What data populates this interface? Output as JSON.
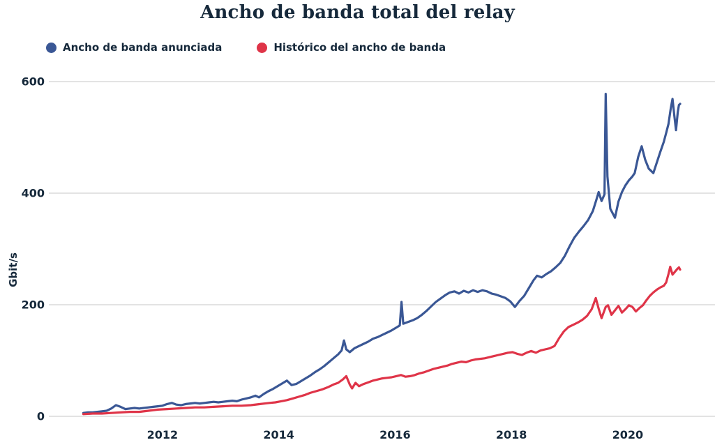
{
  "title": "Ancho de banda total del relay",
  "colors": {
    "text": "#16293b",
    "grid": "#e3e3e3",
    "background": "#ffffff",
    "advertised_blue": "#3a5795",
    "history_red": "#df3448"
  },
  "chart_data": {
    "type": "line",
    "title": "Ancho de banda total del relay",
    "xlabel": "",
    "ylabel": "Gbit/s",
    "grid": "horizontal",
    "legend_position": "top-left",
    "x_ticks": [
      2012,
      2014,
      2016,
      2018,
      2020
    ],
    "y_ticks": [
      0,
      200,
      400,
      600
    ],
    "xlim": [
      2010.07,
      2021.5
    ],
    "ylim": [
      0,
      600
    ],
    "series": [
      {
        "name": "Ancho de banda anunciada",
        "color": "#3a5795",
        "points": [
          [
            2010.64,
            6
          ],
          [
            2010.72,
            7
          ],
          [
            2010.8,
            7
          ],
          [
            2010.88,
            8
          ],
          [
            2010.96,
            9
          ],
          [
            2011.04,
            10
          ],
          [
            2011.12,
            14
          ],
          [
            2011.2,
            20
          ],
          [
            2011.28,
            17
          ],
          [
            2011.36,
            13
          ],
          [
            2011.44,
            14
          ],
          [
            2011.52,
            15
          ],
          [
            2011.6,
            14
          ],
          [
            2011.68,
            15
          ],
          [
            2011.76,
            16
          ],
          [
            2011.84,
            17
          ],
          [
            2011.92,
            18
          ],
          [
            2012.0,
            19
          ],
          [
            2012.08,
            22
          ],
          [
            2012.16,
            24
          ],
          [
            2012.24,
            21
          ],
          [
            2012.32,
            20
          ],
          [
            2012.4,
            22
          ],
          [
            2012.48,
            23
          ],
          [
            2012.56,
            24
          ],
          [
            2012.64,
            23
          ],
          [
            2012.72,
            24
          ],
          [
            2012.8,
            25
          ],
          [
            2012.88,
            26
          ],
          [
            2012.96,
            25
          ],
          [
            2013.04,
            26
          ],
          [
            2013.12,
            27
          ],
          [
            2013.2,
            28
          ],
          [
            2013.28,
            27
          ],
          [
            2013.36,
            30
          ],
          [
            2013.44,
            32
          ],
          [
            2013.52,
            34
          ],
          [
            2013.6,
            37
          ],
          [
            2013.66,
            34
          ],
          [
            2013.74,
            40
          ],
          [
            2013.82,
            45
          ],
          [
            2013.9,
            49
          ],
          [
            2013.98,
            54
          ],
          [
            2014.06,
            59
          ],
          [
            2014.14,
            64
          ],
          [
            2014.22,
            56
          ],
          [
            2014.3,
            58
          ],
          [
            2014.38,
            63
          ],
          [
            2014.46,
            68
          ],
          [
            2014.54,
            73
          ],
          [
            2014.62,
            79
          ],
          [
            2014.7,
            84
          ],
          [
            2014.78,
            90
          ],
          [
            2014.86,
            97
          ],
          [
            2014.94,
            104
          ],
          [
            2015.02,
            111
          ],
          [
            2015.08,
            118
          ],
          [
            2015.12,
            136
          ],
          [
            2015.16,
            120
          ],
          [
            2015.22,
            115
          ],
          [
            2015.3,
            122
          ],
          [
            2015.38,
            126
          ],
          [
            2015.46,
            130
          ],
          [
            2015.54,
            134
          ],
          [
            2015.62,
            139
          ],
          [
            2015.7,
            142
          ],
          [
            2015.78,
            146
          ],
          [
            2015.86,
            150
          ],
          [
            2015.94,
            154
          ],
          [
            2016.02,
            159
          ],
          [
            2016.08,
            163
          ],
          [
            2016.11,
            205
          ],
          [
            2016.14,
            166
          ],
          [
            2016.22,
            169
          ],
          [
            2016.3,
            172
          ],
          [
            2016.38,
            176
          ],
          [
            2016.46,
            182
          ],
          [
            2016.54,
            189
          ],
          [
            2016.62,
            197
          ],
          [
            2016.7,
            205
          ],
          [
            2016.78,
            211
          ],
          [
            2016.86,
            217
          ],
          [
            2016.94,
            222
          ],
          [
            2017.02,
            224
          ],
          [
            2017.1,
            220
          ],
          [
            2017.18,
            225
          ],
          [
            2017.26,
            222
          ],
          [
            2017.34,
            226
          ],
          [
            2017.42,
            223
          ],
          [
            2017.5,
            226
          ],
          [
            2017.58,
            224
          ],
          [
            2017.66,
            220
          ],
          [
            2017.74,
            218
          ],
          [
            2017.82,
            215
          ],
          [
            2017.9,
            212
          ],
          [
            2017.98,
            206
          ],
          [
            2018.06,
            196
          ],
          [
            2018.14,
            207
          ],
          [
            2018.22,
            216
          ],
          [
            2018.3,
            230
          ],
          [
            2018.38,
            244
          ],
          [
            2018.44,
            252
          ],
          [
            2018.52,
            249
          ],
          [
            2018.6,
            255
          ],
          [
            2018.68,
            260
          ],
          [
            2018.76,
            267
          ],
          [
            2018.84,
            275
          ],
          [
            2018.92,
            288
          ],
          [
            2019.0,
            305
          ],
          [
            2019.08,
            320
          ],
          [
            2019.16,
            331
          ],
          [
            2019.24,
            341
          ],
          [
            2019.32,
            352
          ],
          [
            2019.4,
            368
          ],
          [
            2019.46,
            388
          ],
          [
            2019.5,
            402
          ],
          [
            2019.55,
            386
          ],
          [
            2019.6,
            398
          ],
          [
            2019.62,
            578
          ],
          [
            2019.65,
            430
          ],
          [
            2019.7,
            372
          ],
          [
            2019.78,
            356
          ],
          [
            2019.84,
            385
          ],
          [
            2019.9,
            402
          ],
          [
            2019.96,
            414
          ],
          [
            2020.02,
            423
          ],
          [
            2020.08,
            430
          ],
          [
            2020.12,
            436
          ],
          [
            2020.18,
            465
          ],
          [
            2020.24,
            484
          ],
          [
            2020.3,
            460
          ],
          [
            2020.36,
            444
          ],
          [
            2020.44,
            436
          ],
          [
            2020.5,
            455
          ],
          [
            2020.56,
            474
          ],
          [
            2020.62,
            492
          ],
          [
            2020.66,
            508
          ],
          [
            2020.7,
            524
          ],
          [
            2020.74,
            552
          ],
          [
            2020.77,
            569
          ],
          [
            2020.8,
            540
          ],
          [
            2020.83,
            513
          ],
          [
            2020.86,
            545
          ],
          [
            2020.88,
            558
          ],
          [
            2020.9,
            560
          ]
        ]
      },
      {
        "name": "Histórico del ancho de banda",
        "color": "#df3448",
        "points": [
          [
            2010.64,
            4
          ],
          [
            2010.8,
            5
          ],
          [
            2010.96,
            5
          ],
          [
            2011.12,
            6
          ],
          [
            2011.28,
            7
          ],
          [
            2011.44,
            8
          ],
          [
            2011.6,
            8
          ],
          [
            2011.76,
            10
          ],
          [
            2011.92,
            12
          ],
          [
            2012.08,
            13
          ],
          [
            2012.24,
            14
          ],
          [
            2012.4,
            15
          ],
          [
            2012.56,
            16
          ],
          [
            2012.72,
            16
          ],
          [
            2012.88,
            17
          ],
          [
            2013.04,
            18
          ],
          [
            2013.2,
            19
          ],
          [
            2013.36,
            19
          ],
          [
            2013.52,
            20
          ],
          [
            2013.68,
            22
          ],
          [
            2013.84,
            24
          ],
          [
            2013.94,
            25
          ],
          [
            2014.04,
            27
          ],
          [
            2014.14,
            29
          ],
          [
            2014.24,
            32
          ],
          [
            2014.34,
            35
          ],
          [
            2014.44,
            38
          ],
          [
            2014.54,
            42
          ],
          [
            2014.64,
            45
          ],
          [
            2014.74,
            48
          ],
          [
            2014.84,
            52
          ],
          [
            2014.94,
            57
          ],
          [
            2015.02,
            60
          ],
          [
            2015.1,
            66
          ],
          [
            2015.16,
            72
          ],
          [
            2015.22,
            57
          ],
          [
            2015.26,
            50
          ],
          [
            2015.32,
            60
          ],
          [
            2015.38,
            54
          ],
          [
            2015.46,
            58
          ],
          [
            2015.54,
            61
          ],
          [
            2015.62,
            64
          ],
          [
            2015.7,
            66
          ],
          [
            2015.78,
            68
          ],
          [
            2015.86,
            69
          ],
          [
            2015.94,
            70
          ],
          [
            2016.02,
            72
          ],
          [
            2016.1,
            74
          ],
          [
            2016.18,
            71
          ],
          [
            2016.26,
            72
          ],
          [
            2016.34,
            74
          ],
          [
            2016.42,
            77
          ],
          [
            2016.5,
            79
          ],
          [
            2016.58,
            82
          ],
          [
            2016.66,
            85
          ],
          [
            2016.74,
            87
          ],
          [
            2016.82,
            89
          ],
          [
            2016.9,
            91
          ],
          [
            2016.98,
            94
          ],
          [
            2017.06,
            96
          ],
          [
            2017.14,
            98
          ],
          [
            2017.22,
            97
          ],
          [
            2017.3,
            100
          ],
          [
            2017.38,
            102
          ],
          [
            2017.46,
            103
          ],
          [
            2017.54,
            104
          ],
          [
            2017.62,
            106
          ],
          [
            2017.7,
            108
          ],
          [
            2017.78,
            110
          ],
          [
            2017.86,
            112
          ],
          [
            2017.94,
            114
          ],
          [
            2018.02,
            115
          ],
          [
            2018.1,
            112
          ],
          [
            2018.18,
            110
          ],
          [
            2018.26,
            114
          ],
          [
            2018.34,
            117
          ],
          [
            2018.42,
            114
          ],
          [
            2018.5,
            118
          ],
          [
            2018.58,
            120
          ],
          [
            2018.66,
            122
          ],
          [
            2018.74,
            126
          ],
          [
            2018.82,
            140
          ],
          [
            2018.9,
            152
          ],
          [
            2018.98,
            160
          ],
          [
            2019.06,
            164
          ],
          [
            2019.14,
            168
          ],
          [
            2019.22,
            173
          ],
          [
            2019.3,
            180
          ],
          [
            2019.38,
            192
          ],
          [
            2019.45,
            212
          ],
          [
            2019.5,
            193
          ],
          [
            2019.55,
            176
          ],
          [
            2019.62,
            196
          ],
          [
            2019.66,
            199
          ],
          [
            2019.72,
            182
          ],
          [
            2019.78,
            190
          ],
          [
            2019.84,
            198
          ],
          [
            2019.9,
            186
          ],
          [
            2019.96,
            192
          ],
          [
            2020.02,
            199
          ],
          [
            2020.08,
            196
          ],
          [
            2020.14,
            188
          ],
          [
            2020.2,
            194
          ],
          [
            2020.26,
            199
          ],
          [
            2020.32,
            208
          ],
          [
            2020.38,
            216
          ],
          [
            2020.44,
            222
          ],
          [
            2020.5,
            227
          ],
          [
            2020.56,
            231
          ],
          [
            2020.62,
            234
          ],
          [
            2020.66,
            240
          ],
          [
            2020.7,
            255
          ],
          [
            2020.73,
            268
          ],
          [
            2020.77,
            254
          ],
          [
            2020.81,
            259
          ],
          [
            2020.85,
            264
          ],
          [
            2020.88,
            267
          ],
          [
            2020.9,
            263
          ]
        ]
      }
    ]
  }
}
